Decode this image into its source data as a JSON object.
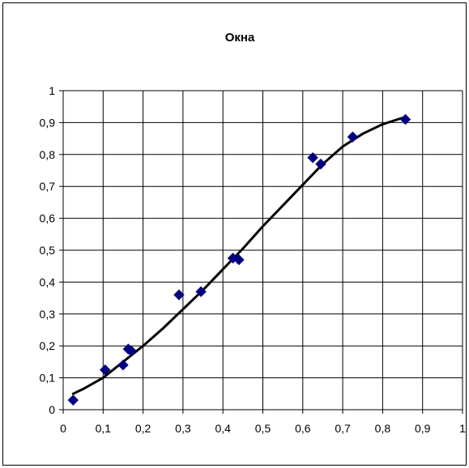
{
  "chart_data": {
    "type": "scatter",
    "title": "Окна",
    "xlabel": "",
    "ylabel": "",
    "xlim": [
      0,
      1
    ],
    "ylim": [
      0,
      1
    ],
    "x_ticks": [
      "0",
      "0,1",
      "0,2",
      "0,3",
      "0,4",
      "0,5",
      "0,6",
      "0,7",
      "0,8",
      "0,9",
      "1"
    ],
    "y_ticks": [
      "0",
      "0,1",
      "0,2",
      "0,3",
      "0,4",
      "0,5",
      "0,6",
      "0,7",
      "0,8",
      "0,9",
      "1"
    ],
    "grid": true,
    "legend": "none",
    "series": [
      {
        "type": "scatter",
        "marker": "diamond",
        "color": "#000080",
        "points": [
          {
            "x": 0.025,
            "y": 0.03
          },
          {
            "x": 0.105,
            "y": 0.125
          },
          {
            "x": 0.15,
            "y": 0.14
          },
          {
            "x": 0.163,
            "y": 0.19
          },
          {
            "x": 0.17,
            "y": 0.185
          },
          {
            "x": 0.29,
            "y": 0.36
          },
          {
            "x": 0.345,
            "y": 0.37
          },
          {
            "x": 0.425,
            "y": 0.475
          },
          {
            "x": 0.44,
            "y": 0.47
          },
          {
            "x": 0.625,
            "y": 0.79
          },
          {
            "x": 0.645,
            "y": 0.77
          },
          {
            "x": 0.725,
            "y": 0.855
          },
          {
            "x": 0.857,
            "y": 0.91
          }
        ]
      },
      {
        "type": "line",
        "color": "#000000",
        "points": [
          {
            "x": 0.025,
            "y": 0.05
          },
          {
            "x": 0.05,
            "y": 0.065
          },
          {
            "x": 0.1,
            "y": 0.1
          },
          {
            "x": 0.15,
            "y": 0.15
          },
          {
            "x": 0.2,
            "y": 0.2
          },
          {
            "x": 0.25,
            "y": 0.255
          },
          {
            "x": 0.3,
            "y": 0.315
          },
          {
            "x": 0.35,
            "y": 0.375
          },
          {
            "x": 0.4,
            "y": 0.44
          },
          {
            "x": 0.45,
            "y": 0.505
          },
          {
            "x": 0.5,
            "y": 0.575
          },
          {
            "x": 0.55,
            "y": 0.64
          },
          {
            "x": 0.6,
            "y": 0.705
          },
          {
            "x": 0.65,
            "y": 0.77
          },
          {
            "x": 0.7,
            "y": 0.825
          },
          {
            "x": 0.75,
            "y": 0.865
          },
          {
            "x": 0.8,
            "y": 0.895
          },
          {
            "x": 0.85,
            "y": 0.915
          }
        ]
      }
    ]
  }
}
